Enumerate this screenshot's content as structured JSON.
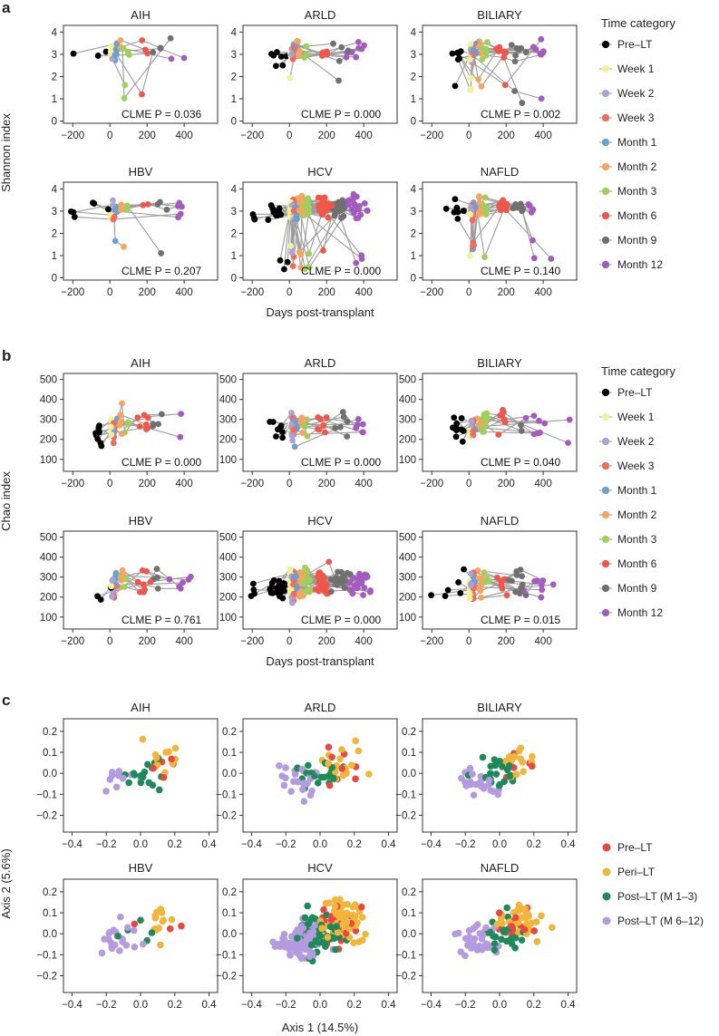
{
  "colors": {
    "Pre-LT": "#6cc5b0",
    "Week 1": "#f2f29a",
    "Week 2": "#a7a3d6",
    "Week 3": "#ef6b5c",
    "Month 1": "#6e9fd0",
    "Month 2": "#f5a55f",
    "Month 3": "#9fd15a",
    "Month 6": "#f0564a",
    "Month 9": "#707070",
    "Month 12": "#a45bbd",
    "Pre–LT c": "#e8483d",
    "Peri–LT": "#f0b53a",
    "Post–LT (M 1–3)": "#1e8a5a",
    "Post–LT (M 6–12)": "#b49ade",
    "line": "#9c9c9c"
  },
  "panels": [
    {
      "letter": "a",
      "ylabel": "Shannon index",
      "xlabel": "Days post-transplant",
      "legend_title": "Time category",
      "legend": [
        "Pre–LT",
        "Week 1",
        "Week 2",
        "Week 3",
        "Month 1",
        "Month 2",
        "Month 3",
        "Month 6",
        "Month 9",
        "Month 12"
      ]
    },
    {
      "letter": "b",
      "ylabel": "Chao index",
      "xlabel": "Days post-transplant",
      "legend_title": "Time category",
      "legend": [
        "Pre–LT",
        "Week 1",
        "Week 2",
        "Week 3",
        "Month 1",
        "Month 2",
        "Month 3",
        "Month 6",
        "Month 9",
        "Month 12"
      ]
    },
    {
      "letter": "c",
      "ylabel": "Axis 2 (5.6%)",
      "xlabel": "Axis 1 (14.5%)",
      "legend": [
        "Pre–LT",
        "Peri–LT",
        "Post–LT (M 1–3)",
        "Post–LT (M 6–12)"
      ]
    }
  ],
  "chart_data": [
    {
      "type": "scatter",
      "panel": "a",
      "ylabel": "Shannon index",
      "xlabel": "Days post-transplant",
      "xlim": [
        -250,
        580
      ],
      "ylim": [
        -0.1,
        4.3
      ],
      "xticks": [
        "−200",
        "0",
        "200",
        "400"
      ],
      "yticks": [
        "0",
        "1",
        "2",
        "3",
        "4"
      ],
      "facets": [
        {
          "title": "AIH",
          "annotation": "CLME P = 0.036",
          "n": 45,
          "xmax": 400,
          "ymin": 0.9
        },
        {
          "title": "ARLD",
          "annotation": "CLME P = 0.000",
          "n": 70,
          "xmax": 430,
          "ymin": 0.8
        },
        {
          "title": "BILIARY",
          "annotation": "CLME P = 0.002",
          "n": 75,
          "xmax": 560,
          "ymin": 0.8
        },
        {
          "title": "HBV",
          "annotation": "CLME P = 0.207",
          "n": 50,
          "xmax": 480,
          "ymin": 0.8
        },
        {
          "title": "HCV",
          "annotation": "CLME P = 0.000",
          "n": 260,
          "xmax": 420,
          "ymin": 0.3
        },
        {
          "title": "NAFLD",
          "annotation": "CLME P = 0.140",
          "n": 90,
          "xmax": 500,
          "ymin": 0.7
        }
      ]
    },
    {
      "type": "scatter",
      "panel": "b",
      "ylabel": "Chao index",
      "xlabel": "Days post-transplant",
      "xlim": [
        -250,
        580
      ],
      "ylim": [
        40,
        530
      ],
      "xticks": [
        "−200",
        "0",
        "200",
        "400"
      ],
      "yticks": [
        "100",
        "200",
        "300",
        "400",
        "500"
      ],
      "facets": [
        {
          "title": "AIH",
          "annotation": "CLME P = 0.000",
          "n": 45,
          "xmax": 400
        },
        {
          "title": "ARLD",
          "annotation": "CLME P = 0.000",
          "n": 70,
          "xmax": 400
        },
        {
          "title": "BILIARY",
          "annotation": "CLME P = 0.040",
          "n": 75,
          "xmax": 560
        },
        {
          "title": "HBV",
          "annotation": "CLME P = 0.761",
          "n": 50,
          "xmax": 480
        },
        {
          "title": "HCV",
          "annotation": "CLME P = 0.000",
          "n": 260,
          "xmax": 420
        },
        {
          "title": "NAFLD",
          "annotation": "CLME P = 0.015",
          "n": 90,
          "xmax": 500
        }
      ]
    },
    {
      "type": "scatter",
      "panel": "c",
      "ylabel": "Axis 2 (5.6%)",
      "xlabel": "Axis 1 (14.5%)",
      "xlim": [
        -0.45,
        0.45
      ],
      "ylim": [
        -0.28,
        0.26
      ],
      "xticks": [
        "−0.4",
        "−0.2",
        "0.0",
        "0.2",
        "0.4"
      ],
      "yticks": [
        "−0.2",
        "−0.1",
        "0.0",
        "0.1",
        "0.2"
      ],
      "facets": [
        {
          "title": "AIH",
          "n": 45
        },
        {
          "title": "ARLD",
          "n": 75
        },
        {
          "title": "BILIARY",
          "n": 70
        },
        {
          "title": "HBV",
          "n": 45
        },
        {
          "title": "HCV",
          "n": 250
        },
        {
          "title": "NAFLD",
          "n": 110
        }
      ]
    }
  ]
}
